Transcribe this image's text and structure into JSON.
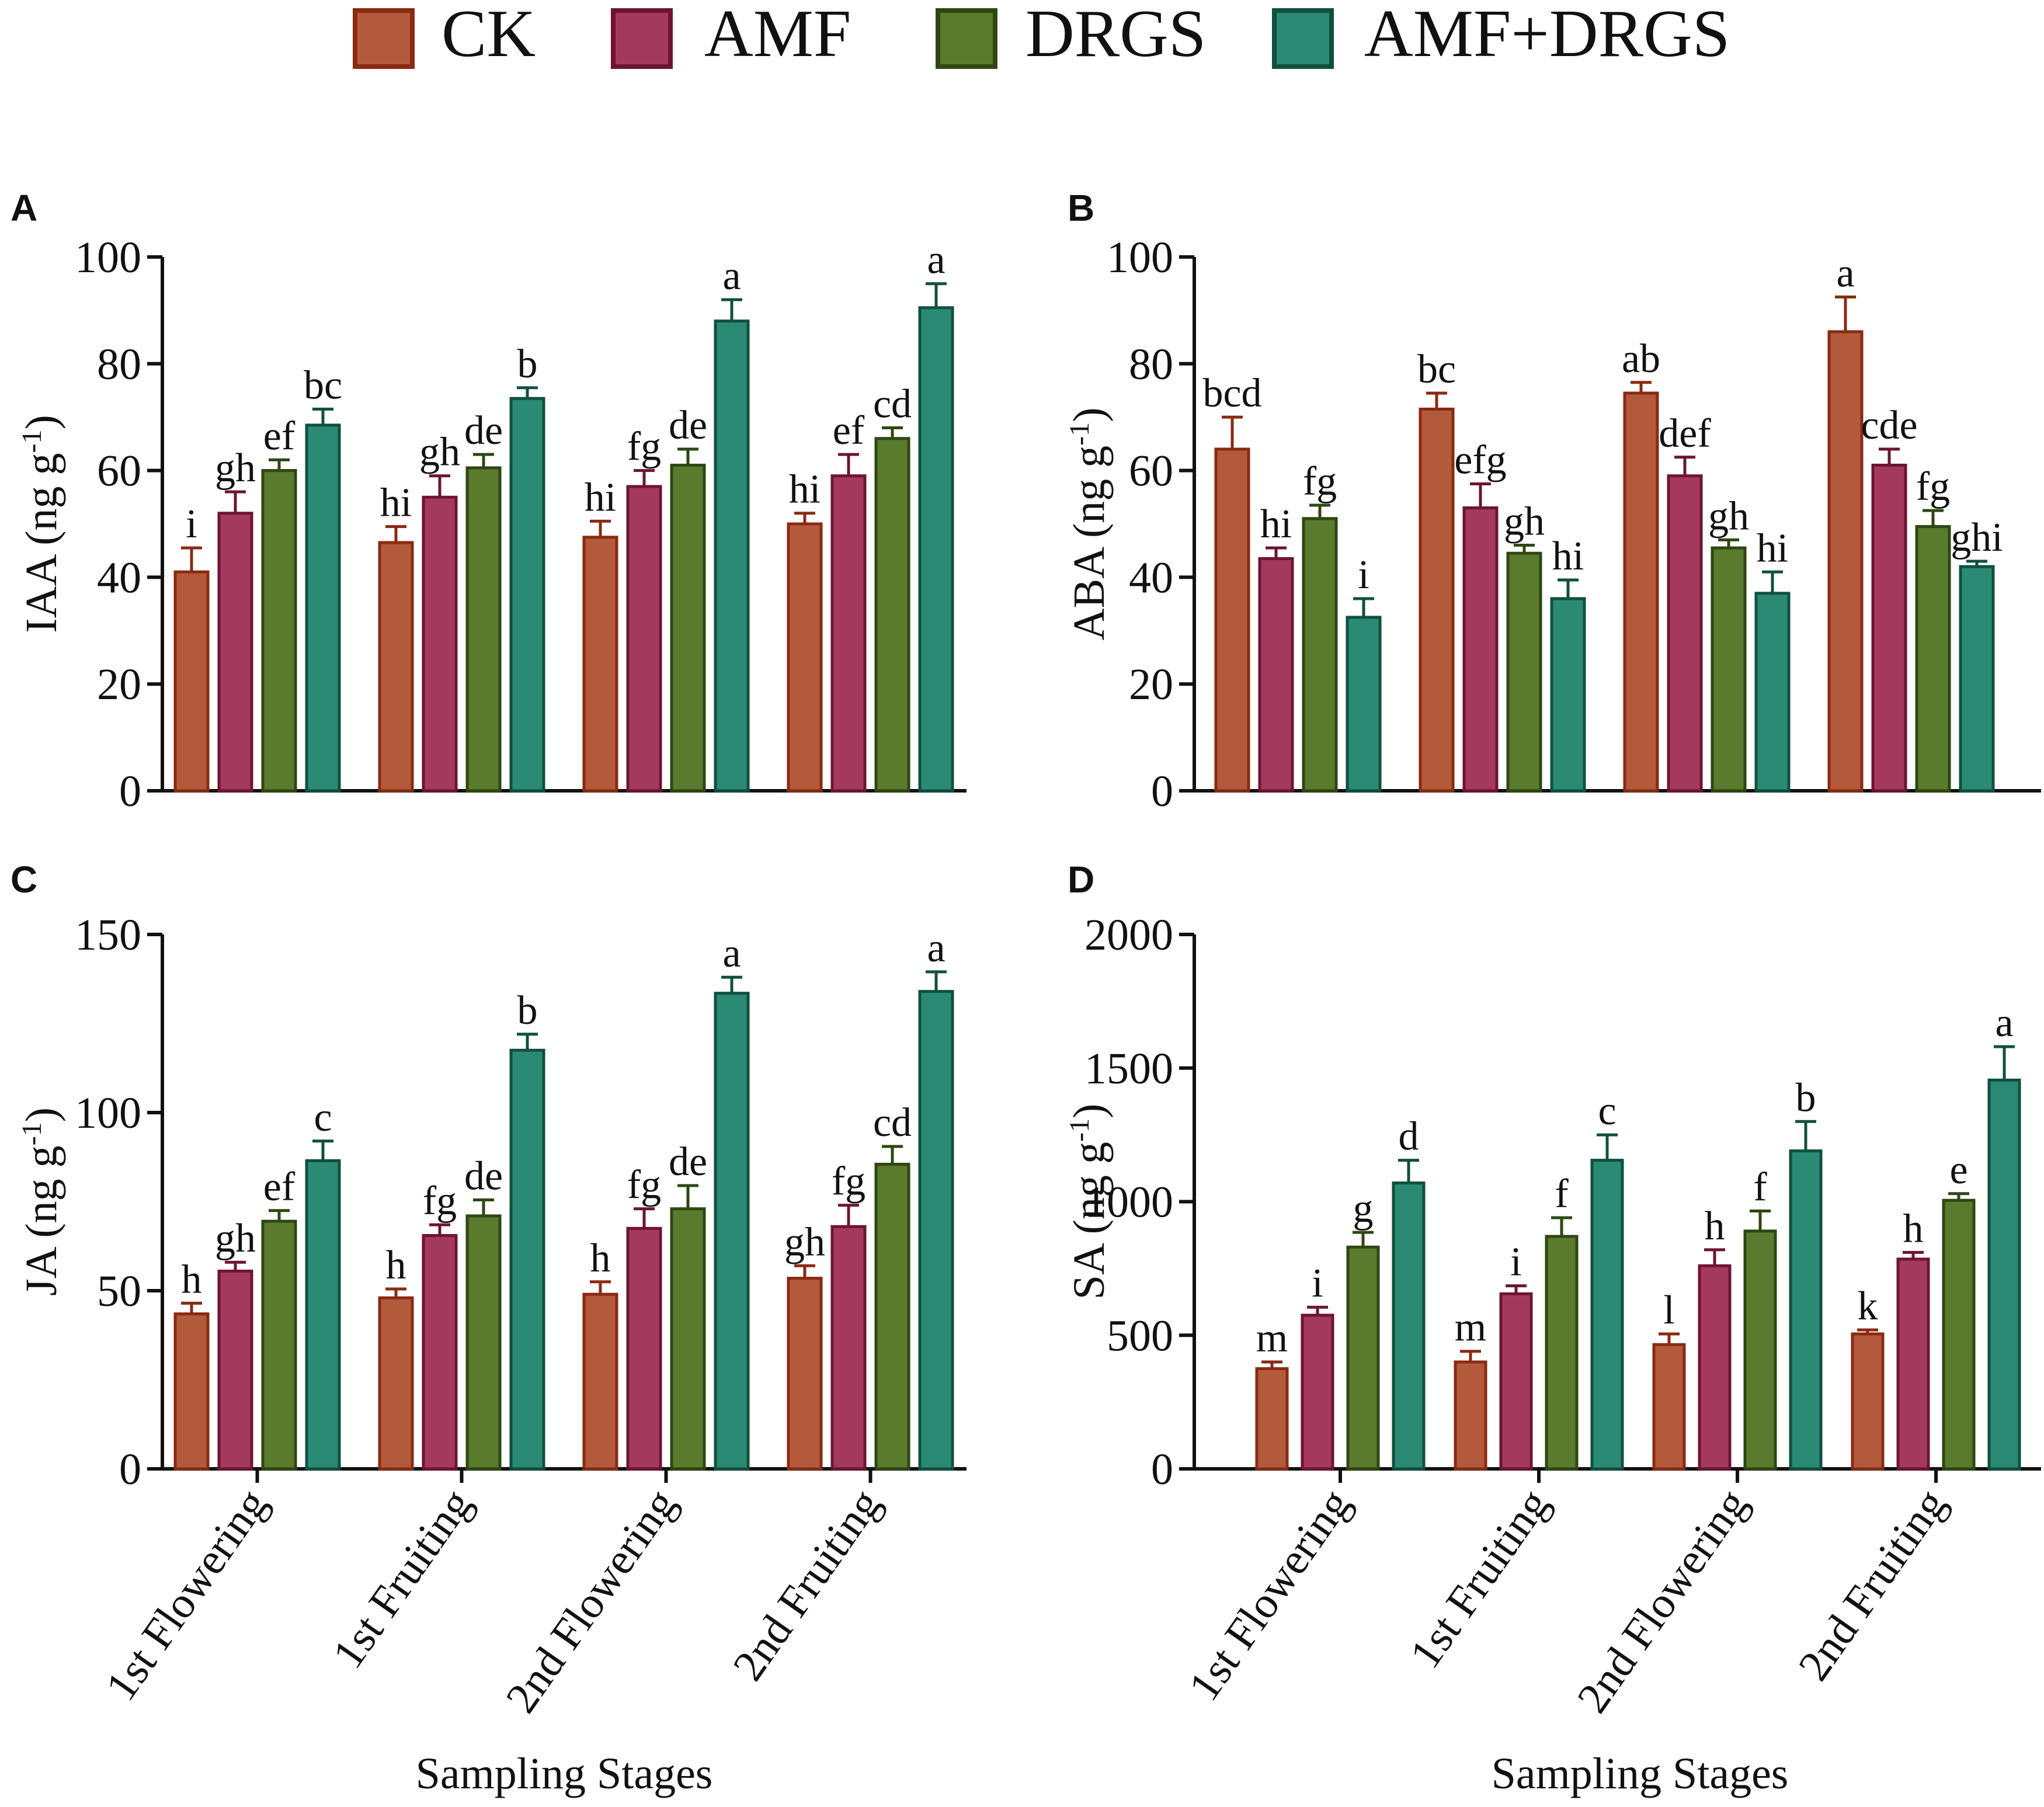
{
  "legend": {
    "items": [
      {
        "label": "CK",
        "fill": "#b45a3c",
        "stroke": "#8a2a12"
      },
      {
        "label": "AMF",
        "fill": "#a33a5e",
        "stroke": "#6e1432"
      },
      {
        "label": "DRGS",
        "fill": "#5a7a2e",
        "stroke": "#2e4712"
      },
      {
        "label": "AMF+DRGS",
        "fill": "#2a8a74",
        "stroke": "#10503e"
      }
    ]
  },
  "x_axis_title": "Sampling Stages",
  "chart_data": [
    {
      "panel": "A",
      "type": "bar",
      "ylabel_main": "IAA (ng g",
      "ylabel_sup": "-1",
      "ylabel_close": ")",
      "ylim": [
        0,
        100
      ],
      "yticks": [
        "0",
        "20",
        "40",
        "60",
        "80",
        "100"
      ],
      "categories": [
        "1st Flowering",
        "1st Fruiting",
        "2nd Flowering",
        "2nd Fruiting"
      ],
      "series": [
        {
          "name": "CK",
          "values": [
            41,
            46.5,
            47.5,
            50
          ],
          "errors": [
            4.5,
            3,
            3,
            2
          ],
          "letters": [
            "i",
            "hi",
            "hi",
            "hi"
          ]
        },
        {
          "name": "AMF",
          "values": [
            52,
            55,
            57,
            59
          ],
          "errors": [
            4,
            4,
            3,
            4
          ],
          "letters": [
            "gh",
            "gh",
            "fg",
            "ef"
          ]
        },
        {
          "name": "DRGS",
          "values": [
            60,
            60.5,
            61,
            66
          ],
          "errors": [
            2,
            2.5,
            3,
            2
          ],
          "letters": [
            "ef",
            "de",
            "de",
            "cd"
          ]
        },
        {
          "name": "AMF+DRGS",
          "values": [
            68.5,
            73.5,
            88,
            90.5
          ],
          "errors": [
            3,
            2,
            4,
            4.5
          ],
          "letters": [
            "bc",
            "b",
            "a",
            "a"
          ]
        }
      ]
    },
    {
      "panel": "B",
      "type": "bar",
      "ylabel_main": "ABA (ng g",
      "ylabel_sup": "-1",
      "ylabel_close": ")",
      "ylim": [
        0,
        100
      ],
      "yticks": [
        "0",
        "20",
        "40",
        "60",
        "80",
        "100"
      ],
      "categories": [
        "1st Flowering",
        "1st Fruiting",
        "2nd Flowering",
        "2nd Fruiting"
      ],
      "series": [
        {
          "name": "CK",
          "values": [
            64,
            71.5,
            74.5,
            86
          ],
          "errors": [
            6,
            3,
            2,
            6.5
          ],
          "letters": [
            "bcd",
            "bc",
            "ab",
            "a"
          ]
        },
        {
          "name": "AMF",
          "values": [
            43.5,
            53,
            59,
            61
          ],
          "errors": [
            2,
            4.5,
            3.5,
            3
          ],
          "letters": [
            "hi",
            "efg",
            "def",
            "cde"
          ]
        },
        {
          "name": "DRGS",
          "values": [
            51,
            44.5,
            45.5,
            49.5
          ],
          "errors": [
            2.5,
            1.5,
            1.5,
            3
          ],
          "letters": [
            "fg",
            "gh",
            "gh",
            "fg"
          ]
        },
        {
          "name": "AMF+DRGS",
          "values": [
            32.5,
            36,
            37,
            42
          ],
          "errors": [
            3.5,
            3.5,
            4,
            1
          ],
          "letters": [
            "i",
            "hi",
            "hi",
            "ghi"
          ]
        }
      ]
    },
    {
      "panel": "C",
      "type": "bar",
      "ylabel_main": "JA (ng g",
      "ylabel_sup": "-1",
      "ylabel_close": ")",
      "ylim": [
        0,
        150
      ],
      "yticks": [
        "0",
        "50",
        "100",
        "150"
      ],
      "categories": [
        "1st Flowering",
        "1st Fruiting",
        "2nd Flowering",
        "2nd Fruiting"
      ],
      "series": [
        {
          "name": "CK",
          "values": [
            43.5,
            48,
            49,
            53.5
          ],
          "errors": [
            3,
            2.5,
            3.5,
            3.5
          ],
          "letters": [
            "h",
            "h",
            "h",
            "gh"
          ]
        },
        {
          "name": "AMF",
          "values": [
            55.5,
            65.5,
            67.5,
            68
          ],
          "errors": [
            2.5,
            3,
            5.5,
            6
          ],
          "letters": [
            "gh",
            "fg",
            "fg",
            "fg"
          ]
        },
        {
          "name": "DRGS",
          "values": [
            69.5,
            71,
            73,
            85.5
          ],
          "errors": [
            3,
            4.5,
            6.5,
            5
          ],
          "letters": [
            "ef",
            "de",
            "de",
            "cd"
          ]
        },
        {
          "name": "AMF+DRGS",
          "values": [
            86.5,
            117.5,
            133.5,
            134
          ],
          "errors": [
            5.5,
            4.5,
            4.5,
            5.5
          ],
          "letters": [
            "c",
            "b",
            "a",
            "a"
          ]
        }
      ]
    },
    {
      "panel": "D",
      "type": "bar",
      "ylabel_main": "SA (ng g",
      "ylabel_sup": "-1",
      "ylabel_close": ")",
      "ylim": [
        0,
        2000
      ],
      "yticks": [
        "0",
        "500",
        "1000",
        "1500",
        "2000"
      ],
      "categories": [
        "1st Flowering",
        "1st Fruiting",
        "2nd Flowering",
        "2nd Fruiting"
      ],
      "series": [
        {
          "name": "CK",
          "values": [
            375,
            400,
            465,
            505
          ],
          "errors": [
            25,
            40,
            40,
            15
          ],
          "letters": [
            "m",
            "m",
            "l",
            "k"
          ]
        },
        {
          "name": "AMF",
          "values": [
            575,
            655,
            760,
            785
          ],
          "errors": [
            30,
            30,
            60,
            25
          ],
          "letters": [
            "i",
            "i",
            "h",
            "h"
          ]
        },
        {
          "name": "DRGS",
          "values": [
            830,
            870,
            890,
            1005
          ],
          "errors": [
            55,
            70,
            75,
            25
          ],
          "letters": [
            "g",
            "f",
            "f",
            "e"
          ]
        },
        {
          "name": "AMF+DRGS",
          "values": [
            1070,
            1155,
            1190,
            1455
          ],
          "errors": [
            85,
            95,
            110,
            125
          ],
          "letters": [
            "d",
            "c",
            "b",
            "a"
          ]
        }
      ]
    }
  ]
}
